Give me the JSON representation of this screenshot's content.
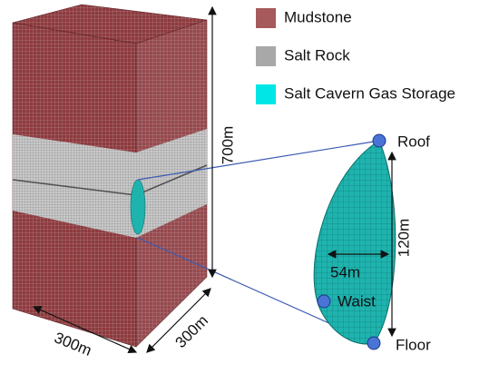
{
  "legend": {
    "items": [
      {
        "label": "Mudstone"
      },
      {
        "label": "Salt Rock"
      },
      {
        "label": "Salt Cavern Gas Storage"
      }
    ]
  },
  "dimensions": {
    "height": "700m",
    "width": "300m",
    "depth": "300m"
  },
  "cavern": {
    "roof": "Roof",
    "waist": "Waist",
    "floor": "Floor",
    "height": "120m",
    "width": "54m"
  }
}
